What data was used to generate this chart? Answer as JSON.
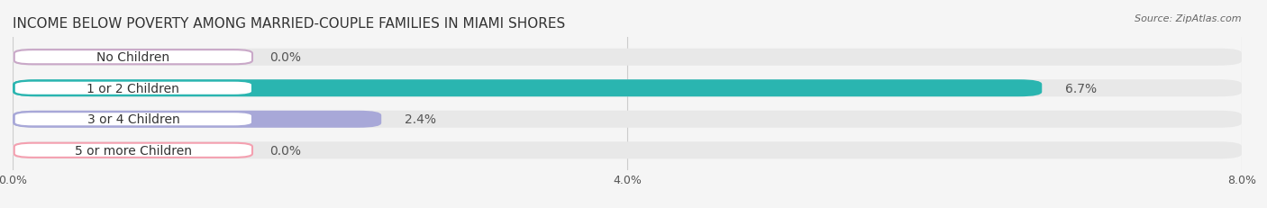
{
  "title": "INCOME BELOW POVERTY AMONG MARRIED-COUPLE FAMILIES IN MIAMI SHORES",
  "source": "Source: ZipAtlas.com",
  "categories": [
    "No Children",
    "1 or 2 Children",
    "3 or 4 Children",
    "5 or more Children"
  ],
  "values": [
    0.0,
    6.7,
    2.4,
    0.0
  ],
  "bar_colors": [
    "#c9a8c8",
    "#2ab5b0",
    "#a8a8d8",
    "#f4a0b0"
  ],
  "label_colors": [
    "#c9a8c8",
    "#2ab5b0",
    "#a8a8d8",
    "#f4a0b0"
  ],
  "xlim": [
    0,
    8.0
  ],
  "xticks": [
    0.0,
    4.0,
    8.0
  ],
  "xtick_labels": [
    "0.0%",
    "4.0%",
    "8.0%"
  ],
  "background_color": "#f5f5f5",
  "bar_background_color": "#e8e8e8",
  "title_fontsize": 11,
  "label_fontsize": 10,
  "value_fontsize": 10
}
